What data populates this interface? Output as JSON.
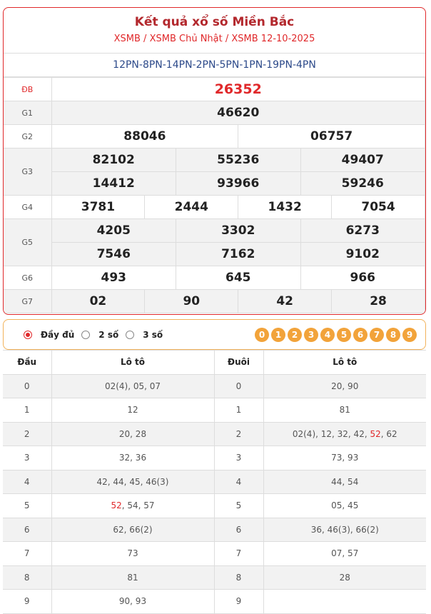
{
  "header": {
    "title": "Kết quả xổ số Miền Bắc",
    "breadcrumb": [
      "XSMB",
      "XSMB Chủ Nhật",
      "XSMB 12-10-2025"
    ],
    "separator": " / "
  },
  "codes": "12PN-8PN-14PN-2PN-5PN-1PN-19PN-4PN",
  "prizes": {
    "db": {
      "label": "ĐB",
      "values": [
        "26352"
      ]
    },
    "g1": {
      "label": "G1",
      "values": [
        "46620"
      ]
    },
    "g2": {
      "label": "G2",
      "values": [
        "88046",
        "06757"
      ]
    },
    "g3": {
      "label": "G3",
      "values": [
        "82102",
        "55236",
        "49407",
        "14412",
        "93966",
        "59246"
      ]
    },
    "g4": {
      "label": "G4",
      "values": [
        "3781",
        "2444",
        "1432",
        "7054"
      ]
    },
    "g5": {
      "label": "G5",
      "values": [
        "4205",
        "3302",
        "6273",
        "7546",
        "7162",
        "9102"
      ]
    },
    "g6": {
      "label": "G6",
      "values": [
        "493",
        "645",
        "966"
      ]
    },
    "g7": {
      "label": "G7",
      "values": [
        "02",
        "90",
        "42",
        "28"
      ]
    }
  },
  "controls": {
    "options": [
      {
        "label": "Đầy đủ",
        "selected": true
      },
      {
        "label": "2 số",
        "selected": false
      },
      {
        "label": "3 số",
        "selected": false
      }
    ],
    "digits": [
      "0",
      "1",
      "2",
      "3",
      "4",
      "5",
      "6",
      "7",
      "8",
      "9"
    ]
  },
  "loto": {
    "headers": [
      "Đầu",
      "Lô tô",
      "Đuôi",
      "Lô tô"
    ],
    "rows": [
      {
        "dau": "0",
        "dau_loto": [
          [
            "02(4), 05, 07",
            false
          ]
        ],
        "duoi": "0",
        "duoi_loto": [
          [
            "20, 90",
            false
          ]
        ]
      },
      {
        "dau": "1",
        "dau_loto": [
          [
            "12",
            false
          ]
        ],
        "duoi": "1",
        "duoi_loto": [
          [
            "81",
            false
          ]
        ]
      },
      {
        "dau": "2",
        "dau_loto": [
          [
            "20, 28",
            false
          ]
        ],
        "duoi": "2",
        "duoi_loto": [
          [
            "02(4), 12, 32, 42, ",
            false
          ],
          [
            "52",
            true
          ],
          [
            ", 62",
            false
          ]
        ]
      },
      {
        "dau": "3",
        "dau_loto": [
          [
            "32, 36",
            false
          ]
        ],
        "duoi": "3",
        "duoi_loto": [
          [
            "73, 93",
            false
          ]
        ]
      },
      {
        "dau": "4",
        "dau_loto": [
          [
            "42, 44, 45, 46(3)",
            false
          ]
        ],
        "duoi": "4",
        "duoi_loto": [
          [
            "44, 54",
            false
          ]
        ]
      },
      {
        "dau": "5",
        "dau_loto": [
          [
            "52",
            true
          ],
          [
            ", 54, 57",
            false
          ]
        ],
        "duoi": "5",
        "duoi_loto": [
          [
            "05, 45",
            false
          ]
        ]
      },
      {
        "dau": "6",
        "dau_loto": [
          [
            "62, 66(2)",
            false
          ]
        ],
        "duoi": "6",
        "duoi_loto": [
          [
            "36, 46(3), 66(2)",
            false
          ]
        ]
      },
      {
        "dau": "7",
        "dau_loto": [
          [
            "73",
            false
          ]
        ],
        "duoi": "7",
        "duoi_loto": [
          [
            "07, 57",
            false
          ]
        ]
      },
      {
        "dau": "8",
        "dau_loto": [
          [
            "81",
            false
          ]
        ],
        "duoi": "8",
        "duoi_loto": [
          [
            "28",
            false
          ]
        ]
      },
      {
        "dau": "9",
        "dau_loto": [
          [
            "90, 93",
            false
          ]
        ],
        "duoi": "9",
        "duoi_loto": []
      }
    ]
  },
  "colors": {
    "accent": "#e0282a",
    "title": "#b3282d",
    "codes": "#2d4a8a",
    "digit_ball": "#f2a33a"
  }
}
